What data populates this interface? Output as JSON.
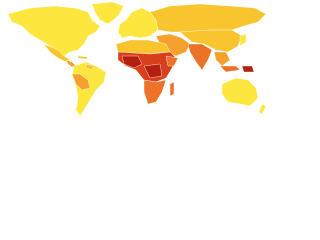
{
  "map": {
    "background": "#ffffff",
    "palette": {
      "level1": "#fde73f",
      "level2": "#f8c52e",
      "level3": "#f5a12d",
      "level4": "#ec722a",
      "level5": "#d8401d",
      "level6": "#b3200f"
    },
    "border": "#ffffff"
  }
}
